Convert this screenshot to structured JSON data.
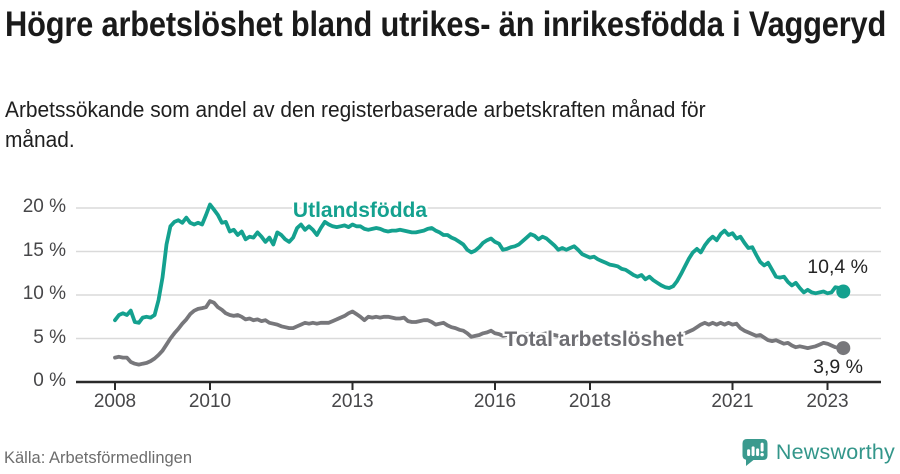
{
  "header": {
    "title": "Högre arbetslöshet bland utrikes- än inrikesfödda i Vaggeryd",
    "subtitle": "Arbetssökande som andel av den registerbaserade arbetskraften månad för månad."
  },
  "footer": {
    "source": "Källa: Arbetsförmedlingen",
    "brand": "Newsworthy"
  },
  "colors": {
    "accent_teal": "#14a18f",
    "line_gray": "#77777b",
    "series_label_gray": "#6e6e73",
    "brand_teal": "#3a9a8e",
    "grid": "#dadada",
    "axis": "#2a2a2a",
    "tick_text": "#474749"
  },
  "chart_data": {
    "type": "line",
    "title": "Högre arbetslöshet bland utrikes- än inrikesfödda i Vaggeryd",
    "subtitle": "Arbetssökande som andel av den registerbaserade arbetskraften månad för månad.",
    "x_start_year": 2008,
    "points_per_year": 12,
    "x_ticks": [
      2008,
      2010,
      2013,
      2016,
      2018,
      2021,
      2023
    ],
    "y_ticks": [
      0,
      5,
      10,
      15,
      20
    ],
    "y_tick_suffix": " %",
    "ylim": [
      0,
      21
    ],
    "grid": true,
    "legend_position": "inline-labels",
    "series": [
      {
        "id": "utlandsfodda",
        "name": "Utlandsfödda",
        "color": "#14a18f",
        "end_label": "10,4 %",
        "end_value": 10.4,
        "values": [
          7.1,
          7.7,
          7.9,
          7.7,
          8.2,
          6.9,
          6.8,
          7.4,
          7.5,
          7.4,
          7.7,
          9.4,
          12.0,
          15.8,
          17.9,
          18.4,
          18.6,
          18.3,
          18.9,
          18.3,
          18.1,
          18.3,
          18.1,
          19.2,
          20.4,
          19.8,
          19.2,
          18.3,
          18.4,
          17.3,
          17.5,
          16.9,
          17.3,
          16.4,
          16.7,
          16.6,
          17.2,
          16.7,
          16.1,
          16.6,
          15.8,
          17.2,
          16.9,
          16.4,
          16.1,
          16.6,
          17.7,
          18.1,
          17.5,
          17.9,
          17.5,
          16.9,
          17.7,
          18.4,
          18.1,
          17.9,
          17.8,
          17.9,
          18.0,
          17.8,
          18.1,
          17.9,
          17.9,
          17.6,
          17.5,
          17.6,
          17.7,
          17.6,
          17.4,
          17.3,
          17.4,
          17.4,
          17.5,
          17.4,
          17.3,
          17.2,
          17.2,
          17.3,
          17.4,
          17.6,
          17.7,
          17.4,
          17.2,
          16.9,
          16.9,
          16.6,
          16.4,
          16.1,
          15.8,
          15.2,
          14.9,
          15.1,
          15.5,
          16.0,
          16.3,
          16.5,
          16.1,
          15.9,
          15.2,
          15.3,
          15.5,
          15.6,
          15.8,
          16.2,
          16.6,
          17.0,
          16.8,
          16.4,
          16.7,
          16.5,
          16.1,
          15.7,
          15.2,
          15.4,
          15.2,
          15.4,
          15.6,
          15.2,
          14.7,
          14.5,
          14.3,
          14.4,
          14.1,
          13.9,
          13.7,
          13.5,
          13.4,
          13.3,
          13.0,
          12.9,
          12.6,
          12.3,
          12.1,
          12.3,
          11.8,
          12.1,
          11.7,
          11.4,
          11.1,
          10.9,
          10.8,
          11.0,
          11.6,
          12.4,
          13.3,
          14.2,
          14.9,
          15.3,
          14.9,
          15.7,
          16.3,
          16.7,
          16.3,
          17.0,
          17.4,
          16.9,
          17.1,
          16.5,
          16.7,
          16.0,
          15.4,
          15.5,
          14.6,
          13.8,
          13.4,
          13.7,
          12.9,
          12.1,
          12.0,
          12.1,
          11.5,
          11.1,
          11.4,
          10.8,
          10.3,
          10.6,
          10.3,
          10.2,
          10.3,
          10.4,
          10.2,
          10.3,
          10.9,
          10.8,
          10.4
        ]
      },
      {
        "id": "total",
        "name": "Total arbetslöshet",
        "color": "#77777b",
        "end_label": "3,9 %",
        "end_value": 3.9,
        "values": [
          2.8,
          2.9,
          2.8,
          2.8,
          2.3,
          2.1,
          2.0,
          2.1,
          2.2,
          2.4,
          2.7,
          3.1,
          3.6,
          4.3,
          5.0,
          5.6,
          6.1,
          6.7,
          7.2,
          7.8,
          8.2,
          8.4,
          8.5,
          8.6,
          9.3,
          9.1,
          8.6,
          8.3,
          7.9,
          7.7,
          7.6,
          7.7,
          7.5,
          7.2,
          7.3,
          7.1,
          7.2,
          7.0,
          7.1,
          6.8,
          6.7,
          6.6,
          6.4,
          6.3,
          6.2,
          6.2,
          6.4,
          6.6,
          6.8,
          6.7,
          6.8,
          6.7,
          6.8,
          6.8,
          6.8,
          7.0,
          7.2,
          7.4,
          7.6,
          7.9,
          8.1,
          7.8,
          7.5,
          7.1,
          7.5,
          7.4,
          7.5,
          7.4,
          7.5,
          7.5,
          7.4,
          7.3,
          7.3,
          7.4,
          7.0,
          6.9,
          6.9,
          7.0,
          7.1,
          7.1,
          6.9,
          6.6,
          6.7,
          6.8,
          6.5,
          6.3,
          6.2,
          6.0,
          5.9,
          5.6,
          5.2,
          5.3,
          5.4,
          5.6,
          5.7,
          5.9,
          5.6,
          5.5,
          5.3,
          5.4,
          5.5,
          5.4,
          5.3,
          5.4,
          5.5,
          5.6,
          5.5,
          5.4,
          5.5,
          5.6,
          5.5,
          5.4,
          5.3,
          5.2,
          5.3,
          5.2,
          5.1,
          5.0,
          5.1,
          5.0,
          4.9,
          5.0,
          4.9,
          4.8,
          4.9,
          4.8,
          4.7,
          4.8,
          4.7,
          4.6,
          4.7,
          4.6,
          4.7,
          4.8,
          4.7,
          4.8,
          4.7,
          4.6,
          4.7,
          4.6,
          4.7,
          4.8,
          5.0,
          5.3,
          5.6,
          5.8,
          6.0,
          6.3,
          6.6,
          6.8,
          6.6,
          6.8,
          6.6,
          6.8,
          6.6,
          6.8,
          6.6,
          6.7,
          6.2,
          5.9,
          5.7,
          5.5,
          5.3,
          5.4,
          5.1,
          4.8,
          4.7,
          4.8,
          4.6,
          4.4,
          4.5,
          4.2,
          4.0,
          4.1,
          4.0,
          3.9,
          4.0,
          4.1,
          4.3,
          4.5,
          4.4,
          4.2,
          4.0,
          3.9,
          3.9
        ]
      }
    ]
  }
}
